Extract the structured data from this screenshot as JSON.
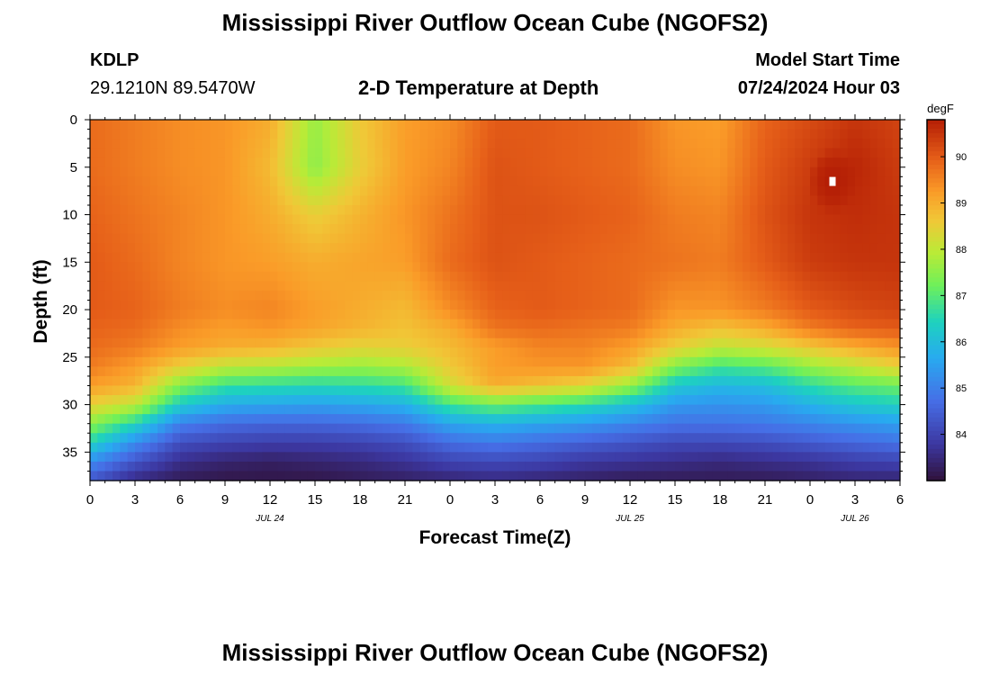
{
  "header": {
    "title": "Mississippi River Outflow Ocean Cube (NGOFS2)",
    "station_id": "KDLP",
    "station_coords": "29.1210N  89.5470W",
    "plot_title": "2-D Temperature at Depth",
    "model_start_label": "Model Start Time",
    "model_start_value": "07/24/2024 Hour 03"
  },
  "footer": {
    "title": "Mississippi River Outflow Ocean Cube (NGOFS2)"
  },
  "chart_data": {
    "type": "heatmap",
    "title": "2-D Temperature at Depth",
    "xlabel": "Forecast Time(Z)",
    "ylabel": "Depth (ft)",
    "x_range_hours": [
      0,
      54
    ],
    "y_range_ft": [
      0,
      38
    ],
    "x_tick_labels": [
      "0",
      "3",
      "6",
      "9",
      "12",
      "15",
      "18",
      "21",
      "0",
      "3",
      "6",
      "9",
      "12",
      "15",
      "18",
      "21",
      "0",
      "3",
      "6"
    ],
    "y_tick_values": [
      0,
      5,
      10,
      15,
      20,
      25,
      30,
      35
    ],
    "y_tick_labels": [
      "0",
      "5",
      "10",
      "15",
      "20",
      "25",
      "30",
      "35"
    ],
    "date_labels": [
      {
        "label": "JUL 24",
        "hour": 12
      },
      {
        "label": "JUL 25",
        "hour": 36
      },
      {
        "label": "JUL 26",
        "hour": 51
      }
    ],
    "colorbar": {
      "unit": "degF",
      "range": [
        83,
        90.8
      ],
      "tick_values": [
        84,
        85,
        86,
        87,
        88,
        89,
        90
      ],
      "tick_labels": [
        "84",
        "85",
        "86",
        "87",
        "88",
        "89",
        "90"
      ]
    },
    "grid": {
      "time_hours": [
        0,
        3,
        6,
        9,
        12,
        15,
        18,
        21,
        24,
        27,
        30,
        33,
        36,
        39,
        42,
        45,
        48,
        51,
        54
      ],
      "depth_ft": [
        0,
        5,
        10,
        15,
        20,
        22,
        24,
        26,
        28,
        30,
        32,
        34,
        36,
        38
      ],
      "temperature_degF": [
        [
          89.8,
          89.6,
          89.4,
          89.3,
          89.0,
          87.6,
          88.6,
          89.2,
          89.4,
          90.0,
          90.0,
          89.9,
          89.8,
          89.3,
          89.2,
          89.9,
          90.2,
          90.5,
          90.3
        ],
        [
          89.8,
          89.6,
          89.4,
          89.3,
          88.8,
          87.5,
          88.5,
          89.2,
          89.5,
          90.1,
          90.0,
          89.9,
          89.8,
          89.4,
          89.3,
          90.0,
          90.4,
          90.7,
          90.4
        ],
        [
          89.9,
          89.7,
          89.5,
          89.3,
          89.0,
          88.5,
          88.9,
          89.3,
          89.7,
          90.1,
          90.1,
          90.0,
          89.9,
          89.6,
          89.5,
          90.1,
          90.5,
          90.6,
          90.5
        ],
        [
          90.0,
          89.8,
          89.5,
          89.3,
          89.2,
          89.0,
          89.1,
          89.2,
          89.8,
          90.1,
          90.0,
          89.9,
          89.8,
          89.7,
          89.6,
          90.0,
          90.4,
          90.5,
          90.5
        ],
        [
          90.0,
          89.9,
          89.6,
          89.4,
          89.5,
          89.2,
          89.0,
          88.8,
          89.4,
          89.9,
          90.0,
          89.9,
          89.8,
          89.3,
          89.3,
          89.6,
          90.0,
          90.2,
          90.3
        ],
        [
          89.9,
          89.8,
          89.4,
          89.2,
          89.3,
          89.1,
          88.9,
          88.7,
          89.0,
          89.7,
          89.8,
          89.7,
          89.6,
          89.0,
          88.7,
          89.0,
          89.6,
          89.9,
          90.0
        ],
        [
          89.8,
          89.6,
          89.2,
          89.0,
          88.9,
          88.6,
          88.4,
          88.5,
          88.8,
          89.2,
          89.5,
          89.5,
          89.2,
          88.5,
          88.0,
          88.2,
          88.6,
          89.0,
          89.3
        ],
        [
          89.6,
          89.2,
          88.5,
          88.0,
          87.9,
          87.7,
          87.6,
          87.8,
          88.6,
          89.2,
          89.3,
          89.3,
          88.8,
          87.4,
          86.8,
          87.0,
          87.6,
          88.0,
          88.5
        ],
        [
          89.2,
          88.9,
          87.4,
          86.7,
          86.6,
          86.5,
          86.6,
          86.8,
          88.2,
          89.0,
          88.7,
          88.4,
          87.6,
          86.2,
          85.9,
          86.0,
          86.6,
          87.0,
          87.2
        ],
        [
          88.5,
          88.0,
          86.3,
          85.7,
          85.6,
          85.5,
          85.6,
          85.8,
          86.8,
          87.2,
          86.9,
          86.6,
          86.1,
          85.4,
          85.3,
          85.4,
          85.8,
          86.2,
          86.4
        ],
        [
          87.5,
          86.5,
          85.0,
          84.7,
          84.6,
          84.6,
          84.7,
          84.9,
          85.6,
          85.8,
          85.6,
          85.4,
          85.1,
          84.8,
          84.8,
          84.9,
          85.1,
          85.3,
          85.5
        ],
        [
          86.5,
          85.2,
          84.2,
          84.0,
          83.9,
          83.9,
          84.0,
          84.2,
          84.7,
          84.9,
          84.7,
          84.5,
          84.3,
          84.1,
          84.1,
          84.2,
          84.4,
          84.6,
          84.8
        ],
        [
          85.2,
          84.3,
          83.6,
          83.4,
          83.3,
          83.4,
          83.5,
          83.7,
          84.0,
          84.1,
          84.0,
          83.8,
          83.7,
          83.6,
          83.5,
          83.6,
          83.7,
          83.9,
          84.0
        ],
        [
          84.3,
          83.5,
          83.2,
          83.1,
          83.1,
          83.1,
          83.2,
          83.3,
          83.4,
          83.5,
          83.4,
          83.3,
          83.2,
          83.2,
          83.2,
          83.2,
          83.3,
          83.4,
          83.4
        ]
      ],
      "hotspot_degF": 90.8,
      "hotspot_hour": 49.5,
      "hotspot_depth_ft": 6.5
    }
  }
}
